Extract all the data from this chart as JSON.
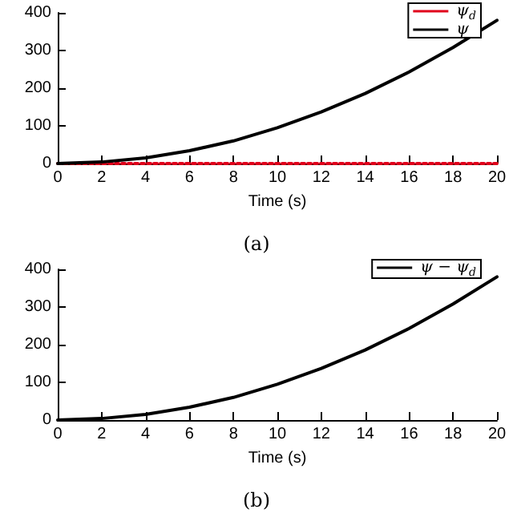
{
  "chart_data": [
    {
      "type": "line",
      "x": [
        0,
        2,
        4,
        6,
        8,
        10,
        12,
        14,
        16,
        18,
        20
      ],
      "xlabel": "Time (s)",
      "annotations": [
        "(a)"
      ],
      "series": [
        {
          "name": "ψ$_{d}$",
          "color": "#e0001b",
          "line_style": "dotted",
          "values": [
            0,
            0,
            0,
            0,
            0,
            0,
            0,
            0,
            0,
            0,
            0
          ]
        },
        {
          "name": "ψ",
          "color": "#000000",
          "line_style": "solid",
          "values": [
            0,
            4,
            15,
            34,
            60,
            95,
            137,
            186,
            243,
            308,
            380
          ]
        }
      ],
      "xlim": [
        0,
        20
      ],
      "xticks": [
        0,
        2,
        4,
        6,
        8,
        10,
        12,
        14,
        16,
        18,
        20
      ],
      "ylim": [
        0,
        400
      ],
      "yticks": [
        0,
        100,
        200,
        300,
        400
      ],
      "grid": false,
      "legend": "top right",
      "marker": "none"
    },
    {
      "type": "line",
      "x": [
        0,
        2,
        4,
        6,
        8,
        10,
        12,
        14,
        16,
        18,
        20
      ],
      "xlabel": "Time (s)",
      "annotations": [
        "(b)"
      ],
      "series": [
        {
          "name": "ψ − ψ$_{d}$",
          "color": "#000000",
          "line_style": "solid",
          "values": [
            0,
            4,
            15,
            34,
            60,
            95,
            137,
            186,
            243,
            308,
            380
          ]
        }
      ],
      "xlim": [
        0,
        20
      ],
      "xticks": [
        0,
        2,
        4,
        6,
        8,
        10,
        12,
        14,
        16,
        18,
        20
      ],
      "ylim": [
        0,
        400
      ],
      "yticks": [
        0,
        100,
        200,
        300,
        400
      ],
      "grid": false,
      "legend": "top right",
      "marker": "none"
    }
  ]
}
